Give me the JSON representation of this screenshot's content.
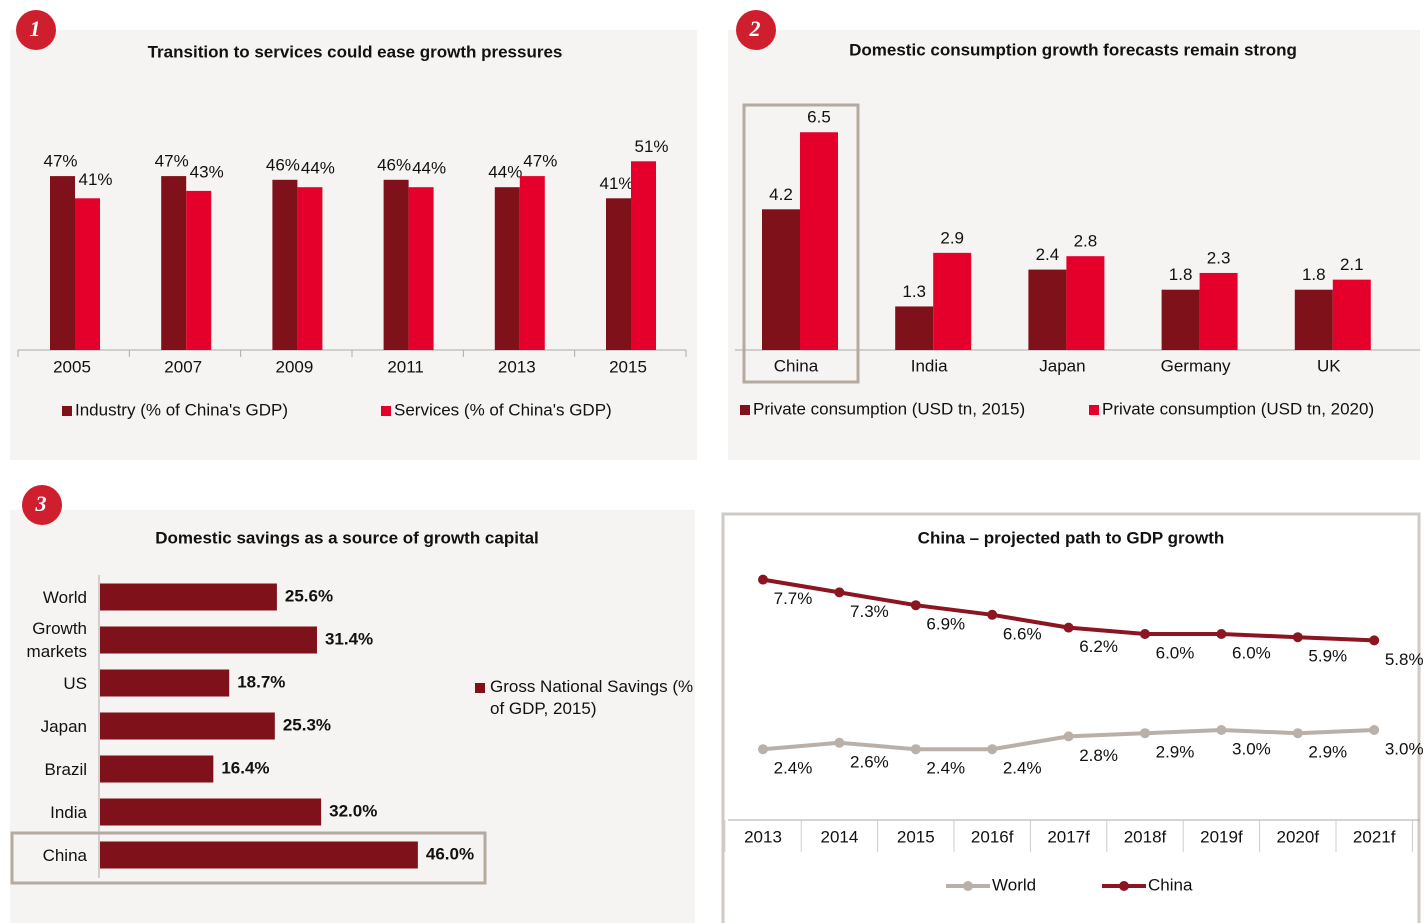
{
  "chart_data": [
    {
      "type": "bar",
      "panel_label": "1",
      "title": "Transition to services could ease growth pressures",
      "categories": [
        "2005",
        "2007",
        "2009",
        "2011",
        "2013",
        "2015"
      ],
      "series": [
        {
          "name": "Industry (% of China's GDP)",
          "color": "#7f111b",
          "values": [
            47,
            47,
            46,
            46,
            44,
            41
          ],
          "value_labels": [
            "47%",
            "47%",
            "46%",
            "46%",
            "44%",
            "41%"
          ]
        },
        {
          "name": "Services (% of China's GDP)",
          "color": "#e4002b",
          "values": [
            41,
            43,
            44,
            44,
            47,
            51
          ],
          "value_labels": [
            "41%",
            "43%",
            "44%",
            "44%",
            "47%",
            "51%"
          ]
        }
      ]
    },
    {
      "type": "bar",
      "panel_label": "2",
      "title": "Domestic consumption growth forecasts remain strong",
      "categories": [
        "China",
        "India",
        "Japan",
        "Germany",
        "UK"
      ],
      "series": [
        {
          "name": "Private consumption (USD tn, 2015)",
          "color": "#7f111b",
          "values": [
            4.2,
            1.3,
            2.4,
            1.8,
            1.8
          ]
        },
        {
          "name": "Private consumption (USD tn, 2020)",
          "color": "#e4002b",
          "values": [
            6.5,
            2.9,
            2.8,
            2.3,
            2.1
          ]
        }
      ]
    },
    {
      "type": "hbar",
      "panel_label": "3",
      "title": "Domestic savings as a source of growth capital",
      "categories": [
        "World",
        "Growth markets",
        "US",
        "Japan",
        "Brazil",
        "India",
        "China"
      ],
      "series": [
        {
          "name": "Gross National Savings (% of GDP, 2015)",
          "color": "#7f111b",
          "values": [
            25.6,
            31.4,
            18.7,
            25.3,
            16.4,
            32.0,
            46.0
          ],
          "value_labels": [
            "25.6%",
            "31.4%",
            "18.7%",
            "25.3%",
            "16.4%",
            "32.0%",
            "46.0%"
          ]
        }
      ]
    },
    {
      "type": "line",
      "title": "China – projected path to GDP growth",
      "categories": [
        "2013",
        "2014",
        "2015",
        "2016f",
        "2017f",
        "2018f",
        "2019f",
        "2020f",
        "2021f"
      ],
      "series": [
        {
          "name": "World",
          "color": "#b9b0a9",
          "values": [
            2.4,
            2.6,
            2.4,
            2.4,
            2.8,
            2.9,
            3.0,
            2.9,
            3.0
          ],
          "value_labels": [
            "2.4%",
            "2.6%",
            "2.4%",
            "2.4%",
            "2.8%",
            "2.9%",
            "3.0%",
            "2.9%",
            "3.0%"
          ]
        },
        {
          "name": "China",
          "color": "#8b1520",
          "values": [
            7.7,
            7.3,
            6.9,
            6.6,
            6.2,
            6.0,
            6.0,
            5.9,
            5.8
          ],
          "value_labels": [
            "7.7%",
            "7.3%",
            "6.9%",
            "6.6%",
            "6.2%",
            "6.0%",
            "6.0%",
            "5.9%",
            "5.8%"
          ]
        }
      ]
    }
  ]
}
